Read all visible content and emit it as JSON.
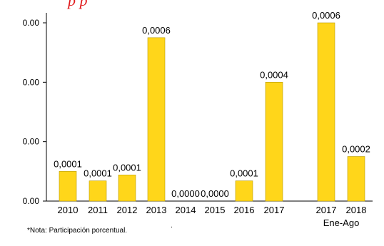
{
  "header": {
    "title_fragment": "p                                   p"
  },
  "chart_data": {
    "type": "bar",
    "categories": [
      "2010",
      "2011",
      "2012",
      "2013",
      "2014",
      "2015",
      "2016",
      "2017",
      "2017",
      "2018"
    ],
    "group_label": "Ene-Ago",
    "values": [
      0.0001,
      6.8e-05,
      8.8e-05,
      0.00055,
      0.0,
      0.0,
      6.8e-05,
      0.0004,
      0.0006,
      0.00015
    ],
    "data_labels": [
      "0,0001",
      "0,0001",
      "0,0001",
      "0,0006",
      "0,0000",
      "0,0000",
      "0,0001",
      "0,0004",
      "0,0006",
      "0,0002"
    ],
    "y_tick_labels": [
      "0.00",
      "0.00",
      "0.00",
      "0.00"
    ],
    "y_ticks": [
      0.0,
      0.0002,
      0.0004,
      0.0006
    ],
    "ylim": [
      0.0,
      0.0006
    ],
    "bar_color": "#ffd61a",
    "grid": false
  },
  "footer": {
    "note": "*Nota: Participación porcentual.",
    "mark": "."
  }
}
